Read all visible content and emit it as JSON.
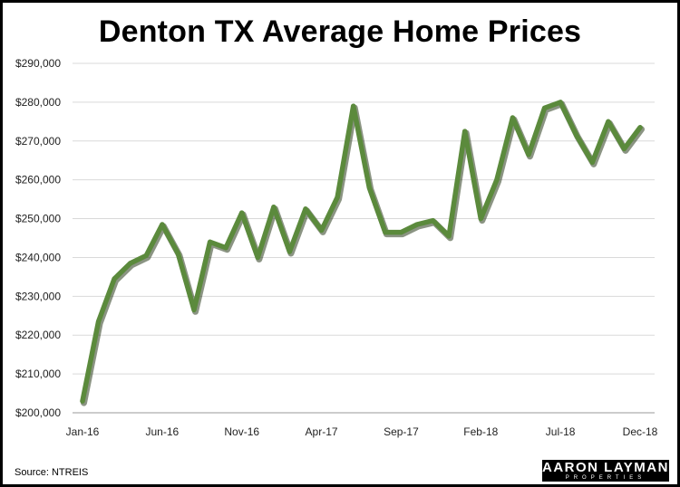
{
  "chart_data": {
    "type": "line",
    "title": "Denton TX Average Home Prices",
    "xlabel": "",
    "ylabel": "",
    "ylim": [
      200000,
      290000
    ],
    "y_ticks": [
      "$200,000",
      "$210,000",
      "$220,000",
      "$230,000",
      "$240,000",
      "$250,000",
      "$260,000",
      "$270,000",
      "$280,000",
      "$290,000"
    ],
    "x_tick_labels": [
      {
        "index": 0,
        "label": "Jan-16"
      },
      {
        "index": 5,
        "label": "Jun-16"
      },
      {
        "index": 10,
        "label": "Nov-16"
      },
      {
        "index": 15,
        "label": "Apr-17"
      },
      {
        "index": 20,
        "label": "Sep-17"
      },
      {
        "index": 25,
        "label": "Feb-18"
      },
      {
        "index": 30,
        "label": "Jul-18"
      },
      {
        "index": 35,
        "label": "Dec-18"
      }
    ],
    "x": [
      "Jan-16",
      "Feb-16",
      "Mar-16",
      "Apr-16",
      "May-16",
      "Jun-16",
      "Jul-16",
      "Aug-16",
      "Sep-16",
      "Oct-16",
      "Nov-16",
      "Dec-16",
      "Jan-17",
      "Feb-17",
      "Mar-17",
      "Apr-17",
      "May-17",
      "Jun-17",
      "Jul-17",
      "Aug-17",
      "Sep-17",
      "Oct-17",
      "Nov-17",
      "Dec-17",
      "Jan-18",
      "Feb-18",
      "Mar-18",
      "Apr-18",
      "May-18",
      "Jun-18",
      "Jul-18",
      "Aug-18",
      "Sep-18",
      "Oct-18",
      "Nov-18",
      "Dec-18"
    ],
    "series": [
      {
        "values": [
          203000,
          223500,
          234500,
          238500,
          240500,
          248500,
          241000,
          226500,
          244000,
          242500,
          251500,
          240000,
          253000,
          241500,
          252500,
          247000,
          255500,
          279000,
          258000,
          246500,
          246500,
          248500,
          249500,
          245500,
          272500,
          250000,
          260000,
          276000,
          266500,
          278500,
          280000,
          271500,
          264500,
          275000,
          268000,
          273500
        ],
        "color": "#5b8a3c"
      }
    ],
    "grid": true,
    "legend": "none"
  },
  "footer": {
    "source": "Source: NTREIS",
    "logo_line1": "AARON LAYMAN",
    "logo_line2": "PROPERTIES"
  }
}
